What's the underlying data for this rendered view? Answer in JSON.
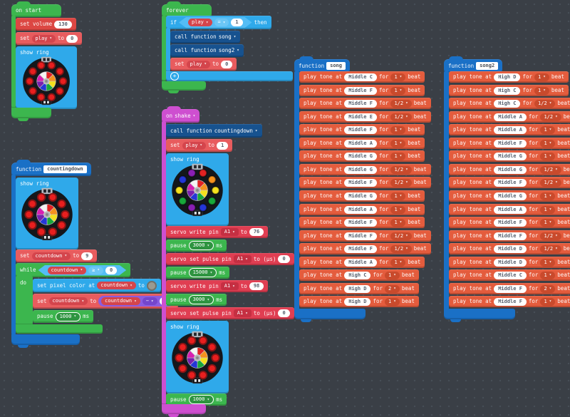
{
  "palette": {
    "workspace_bg": "#3a3f46",
    "loops_green": "#3cb64e",
    "light_blue": "#2fa9ea",
    "call_blue": "#17528f",
    "function_blue": "#1a70c6",
    "music_red": "#dc4743",
    "variables_red": "#e85c5e",
    "servo_red": "#e03e52",
    "tone_orange": "#e45c3d",
    "input_magenta": "#ce4fd0",
    "math_purple": "#8a5ce0"
  },
  "rings": {
    "wheel": [
      "#e32222",
      "#f5921e",
      "#f5e11e",
      "#18a83a",
      "#2436d8",
      "#7a1fae",
      "#d81fb0",
      "#f4f4f4"
    ],
    "red": {
      "leds": [
        "#e81f1f",
        "#e81f1f",
        "#e81f1f",
        "#e81f1f",
        "#e81f1f",
        "#e81f1f",
        "#e81f1f",
        "#e81f1f",
        "#e81f1f",
        "#e81f1f"
      ],
      "led_ring": "#8a1414"
    },
    "rainbow": {
      "leds": [
        "#e32222",
        "#f5921e",
        "#f5e11e",
        "#18a83a",
        "#2436d8",
        "#8a1fb4",
        "#18a83a",
        "#f5e11e",
        "#2436d8",
        "#8a1fb4"
      ],
      "led_ring": "rgba(0,0,0,0.35)"
    }
  },
  "on_start": {
    "title": "on start",
    "set_volume": {
      "label": "set volume",
      "value": "130"
    },
    "set_play": {
      "kw_set": "set",
      "var": "play",
      "kw_to": "to",
      "value": "0"
    },
    "show_ring_label": "show ring"
  },
  "forever": {
    "title": "forever",
    "if_row": {
      "kw_if": "if",
      "var": "play",
      "op": "=",
      "value": "1",
      "kw_then": "then"
    },
    "call_song": {
      "label": "call function",
      "fn": "song"
    },
    "call_song2": {
      "label": "call function",
      "fn": "song2"
    },
    "set_play": {
      "kw_set": "set",
      "var": "play",
      "kw_to": "to",
      "value": "0"
    }
  },
  "countingdown": {
    "kw_function": "function",
    "name": "countingdown",
    "show_ring_label": "show ring",
    "set_countdown": {
      "kw_set": "set",
      "var": "countdown",
      "kw_to": "to",
      "value": "9"
    },
    "while_row": {
      "kw_while": "while",
      "var": "countdown",
      "op": "≥",
      "value": "0",
      "kw_do": "do"
    },
    "set_pixel": {
      "label": "set pixel color at",
      "var": "countdown",
      "kw_to": "to"
    },
    "set_countdown2": {
      "kw_set": "set",
      "var": "countdown",
      "kw_to": "to",
      "expr_var": "countdown",
      "op": "−",
      "value": "1"
    },
    "pause": {
      "kw": "pause",
      "value": "1000",
      "ms": "ms"
    }
  },
  "on_shake": {
    "kw_on": "on",
    "event": "shake",
    "call": {
      "label": "call function",
      "fn": "countingdown"
    },
    "set_play": {
      "kw_set": "set",
      "var": "play",
      "kw_to": "to",
      "value": "1"
    },
    "show_ring_label": "show ring",
    "servo1": {
      "label": "servo write pin",
      "pin": "A1",
      "kw_to": "to",
      "value": "76"
    },
    "pause1": {
      "kw": "pause",
      "value": "3000",
      "ms": "ms"
    },
    "servo2": {
      "label": "servo set pulse pin",
      "pin": "A1",
      "kw_to": "to (µs)",
      "value": "0"
    },
    "pause2": {
      "kw": "pause",
      "value": "15000",
      "ms": "ms"
    },
    "servo3": {
      "label": "servo write pin",
      "pin": "A1",
      "kw_to": "to",
      "value": "98"
    },
    "pause3": {
      "kw": "pause",
      "value": "3000",
      "ms": "ms"
    },
    "servo4": {
      "label": "servo set pulse pin",
      "pin": "A1",
      "kw_to": "to (µs)",
      "value": "0"
    },
    "show_ring2_label": "show ring",
    "pause4": {
      "kw": "pause",
      "value": "1000",
      "ms": "ms"
    }
  },
  "song": {
    "kw_function": "function",
    "name": "song",
    "labels": {
      "play": "play tone at",
      "for": "for",
      "beat": "beat"
    },
    "blocks": [
      {
        "note": "Middle C",
        "beat": "1"
      },
      {
        "note": "Middle F",
        "beat": "1"
      },
      {
        "note": "Middle F",
        "beat": "1/2"
      },
      {
        "note": "Middle E",
        "beat": "1/2"
      },
      {
        "note": "Middle F",
        "beat": "1"
      },
      {
        "note": "Middle A",
        "beat": "1"
      },
      {
        "note": "Middle G",
        "beat": "1"
      },
      {
        "note": "Middle G",
        "beat": "1/2"
      },
      {
        "note": "Middle F",
        "beat": "1/2"
      },
      {
        "note": "Middle G",
        "beat": "1"
      },
      {
        "note": "Middle A",
        "beat": "1"
      },
      {
        "note": "Middle F",
        "beat": "1"
      },
      {
        "note": "Middle F",
        "beat": "1/2"
      },
      {
        "note": "Middle F",
        "beat": "1/2"
      },
      {
        "note": "Middle A",
        "beat": "1"
      },
      {
        "note": "High C",
        "beat": "1"
      },
      {
        "note": "High D",
        "beat": "2"
      },
      {
        "note": "High D",
        "beat": "1"
      }
    ]
  },
  "song2": {
    "kw_function": "function",
    "name": "song2",
    "labels": {
      "play": "play tone at",
      "for": "for",
      "beat": "beat"
    },
    "blocks": [
      {
        "note": "High D",
        "beat": "1"
      },
      {
        "note": "High C",
        "beat": "1"
      },
      {
        "note": "High C",
        "beat": "1/2"
      },
      {
        "note": "Middle A",
        "beat": "1/2"
      },
      {
        "note": "Middle A",
        "beat": "1"
      },
      {
        "note": "Middle F",
        "beat": "1"
      },
      {
        "note": "Middle G",
        "beat": "1"
      },
      {
        "note": "Middle G",
        "beat": "1/2"
      },
      {
        "note": "Middle F",
        "beat": "1/2"
      },
      {
        "note": "Middle G",
        "beat": "1"
      },
      {
        "note": "Middle A",
        "beat": "1"
      },
      {
        "note": "Middle F",
        "beat": "1"
      },
      {
        "note": "Middle F",
        "beat": "1/2"
      },
      {
        "note": "Middle D",
        "beat": "1/2"
      },
      {
        "note": "Middle D",
        "beat": "1"
      },
      {
        "note": "Middle C",
        "beat": "1"
      },
      {
        "note": "Middle F",
        "beat": "2"
      },
      {
        "note": "Middle F",
        "beat": "1"
      }
    ]
  }
}
